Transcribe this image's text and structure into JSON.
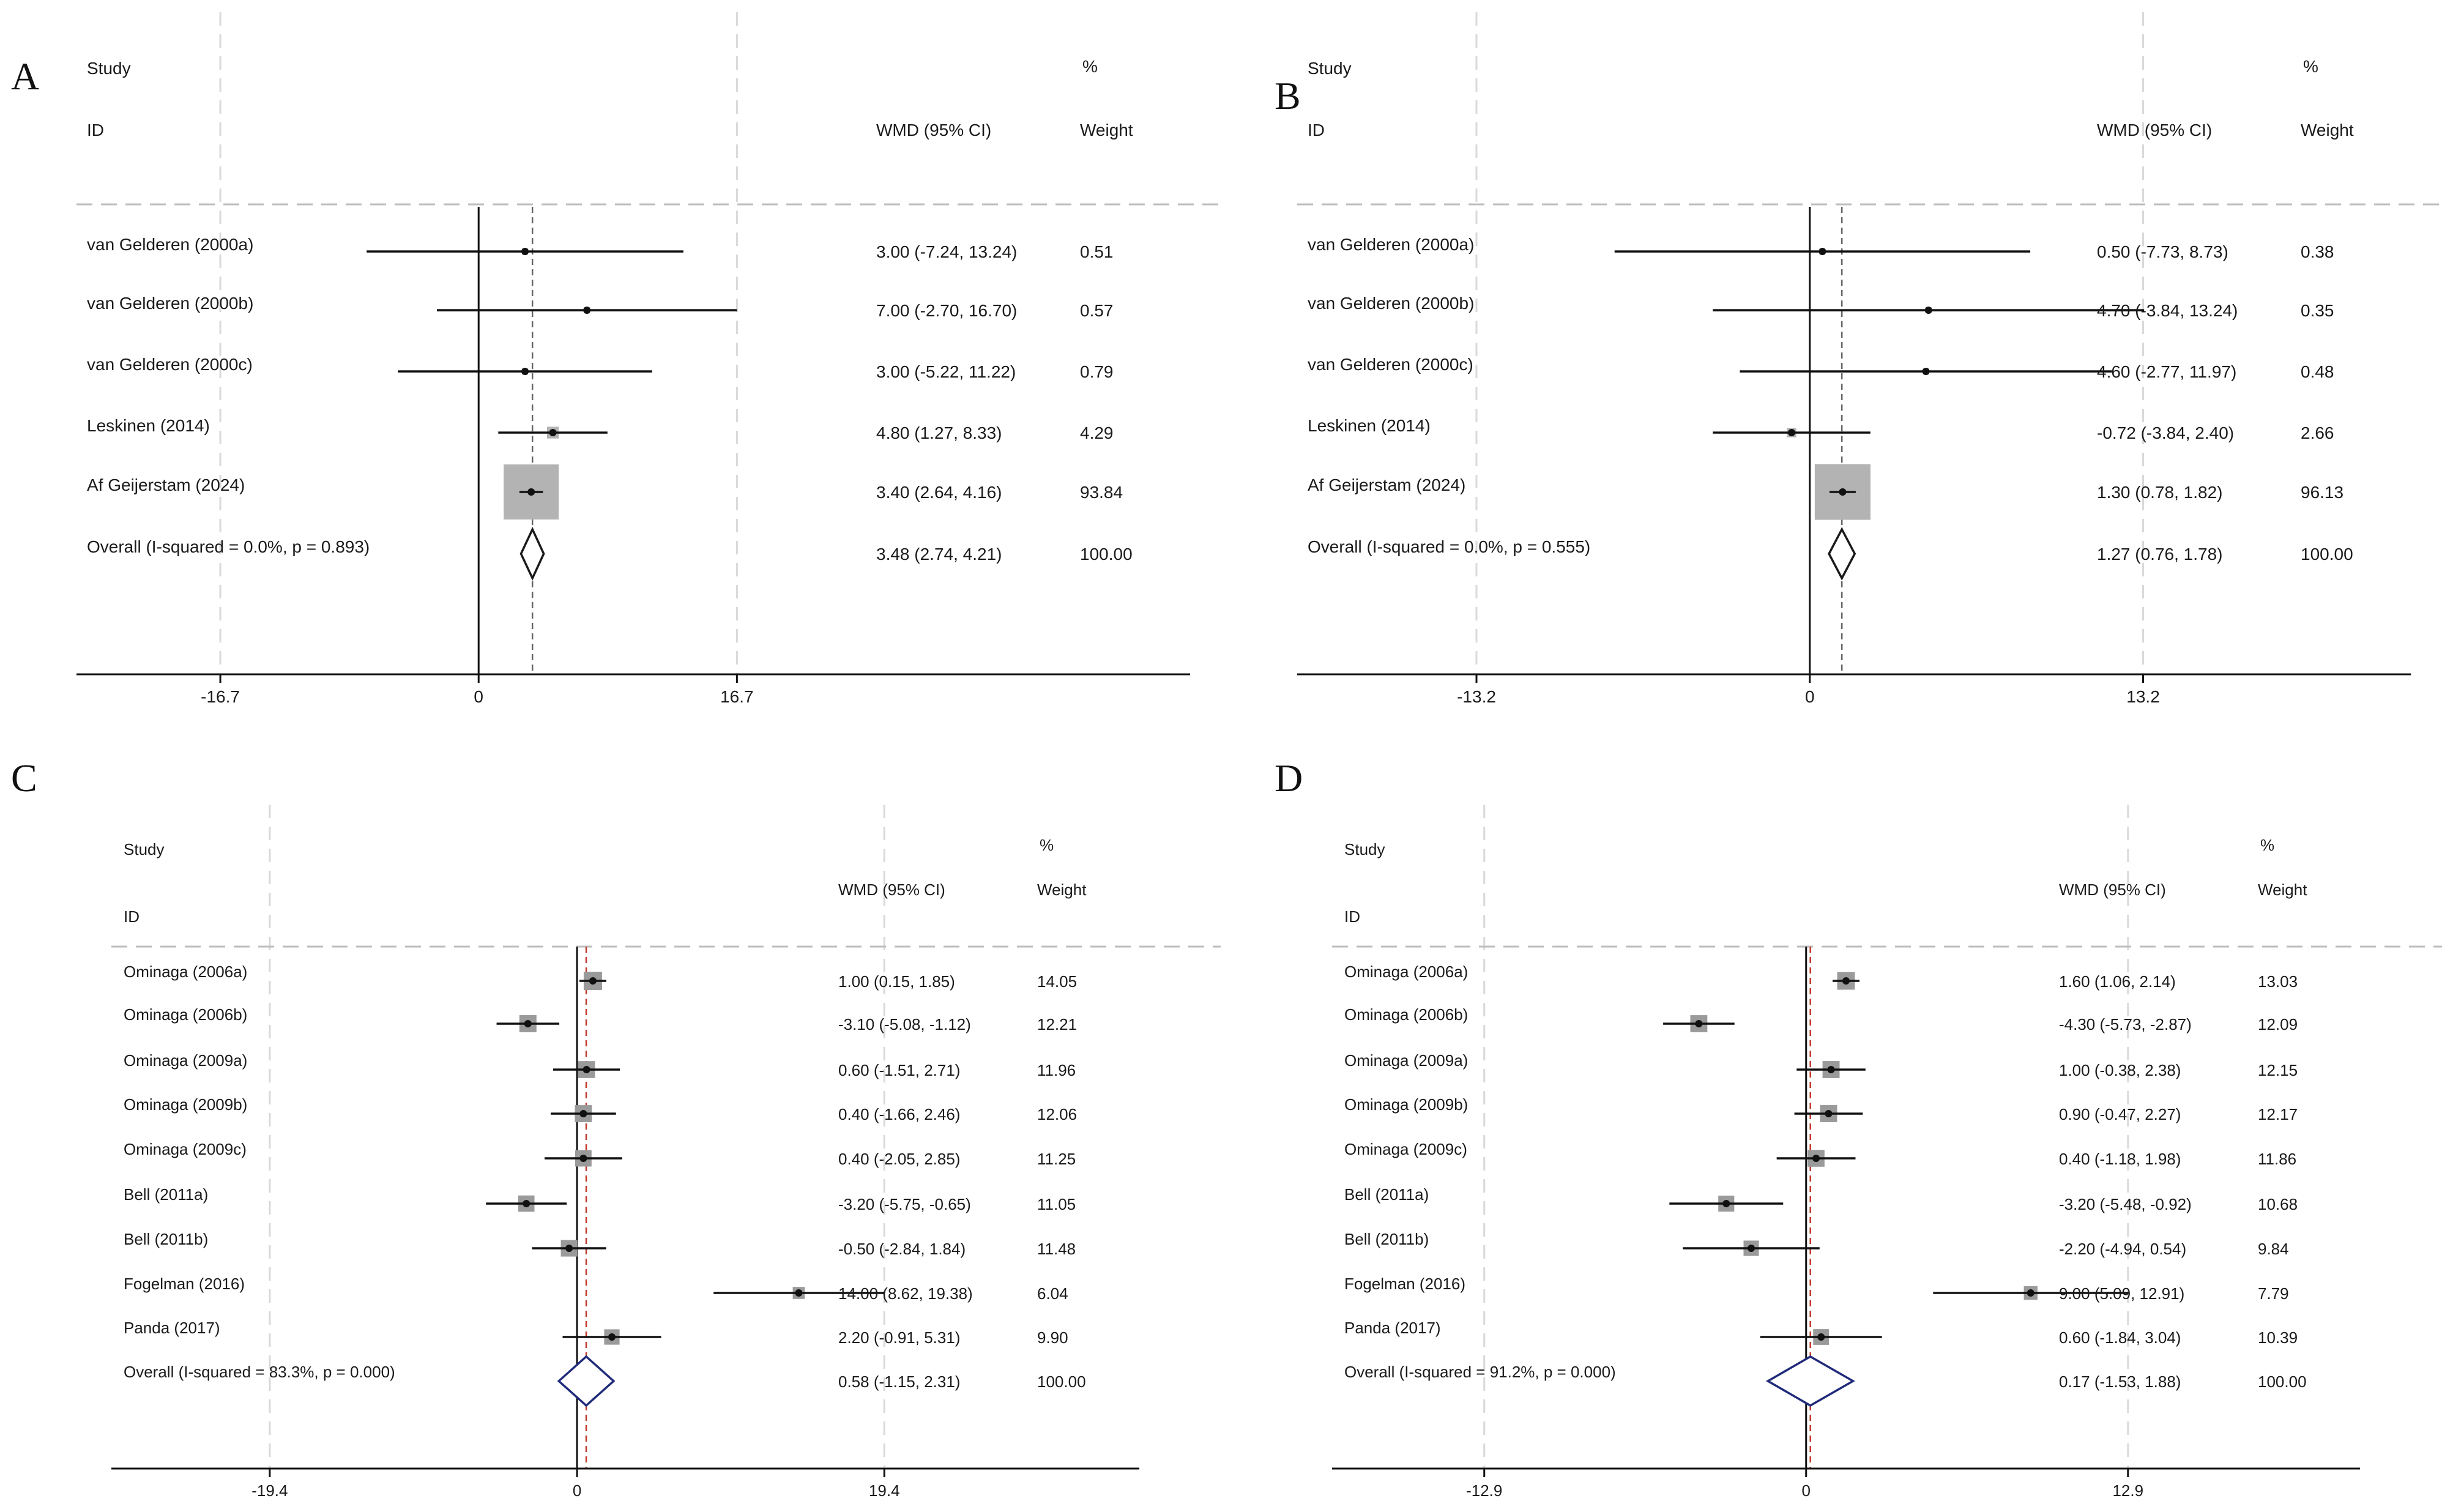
{
  "chart_data": [
    {
      "type": "forest",
      "panel_label": "A",
      "header": {
        "study": "Study",
        "id": "ID",
        "pct": "%",
        "effect": "WMD (95% CI)",
        "weight": "Weight"
      },
      "xlim": [
        -26,
        46
      ],
      "ticks": [
        {
          "value": -16.7,
          "label": "-16.7"
        },
        {
          "value": 0,
          "label": "0"
        },
        {
          "value": 16.7,
          "label": "16.7"
        }
      ],
      "style": "ab",
      "studies": [
        {
          "name": "van Gelderen (2000a)",
          "est": 3.0,
          "lo": -7.24,
          "hi": 13.24,
          "ci_text": "3.00 (-7.24, 13.24)",
          "weight": 0.51,
          "weight_text": "0.51"
        },
        {
          "name": "van Gelderen (2000b)",
          "est": 7.0,
          "lo": -2.7,
          "hi": 16.7,
          "ci_text": "7.00 (-2.70, 16.70)",
          "weight": 0.57,
          "weight_text": "0.57"
        },
        {
          "name": "van Gelderen (2000c)",
          "est": 3.0,
          "lo": -5.22,
          "hi": 11.22,
          "ci_text": "3.00 (-5.22, 11.22)",
          "weight": 0.79,
          "weight_text": "0.79"
        },
        {
          "name": "Leskinen (2014)",
          "est": 4.8,
          "lo": 1.27,
          "hi": 8.33,
          "ci_text": "4.80 (1.27, 8.33)",
          "weight": 4.29,
          "weight_text": "4.29"
        },
        {
          "name": "Af Geijerstam (2024)",
          "est": 3.4,
          "lo": 2.64,
          "hi": 4.16,
          "ci_text": "3.40 (2.64, 4.16)",
          "weight": 93.84,
          "weight_text": "93.84"
        }
      ],
      "overall": {
        "name": "Overall  (I-squared = 0.0%, p = 0.893)",
        "est": 3.48,
        "lo": 2.74,
        "hi": 4.21,
        "ci_text": "3.48 (2.74, 4.21)",
        "weight_text": "100.00"
      },
      "colors": {
        "diamond": "#1a1a1a",
        "ref_line": "#666666",
        "box": "#b3b3b3"
      }
    },
    {
      "type": "forest",
      "panel_label": "B",
      "header": {
        "study": "Study",
        "id": "ID",
        "pct": "%",
        "effect": "WMD (95% CI)",
        "weight": "Weight"
      },
      "xlim": [
        -20.3,
        23.8
      ],
      "ticks": [
        {
          "value": -13.2,
          "label": "-13.2"
        },
        {
          "value": 0,
          "label": "0"
        },
        {
          "value": 13.2,
          "label": "13.2"
        }
      ],
      "style": "ab",
      "studies": [
        {
          "name": "van Gelderen (2000a)",
          "est": 0.5,
          "lo": -7.73,
          "hi": 8.73,
          "ci_text": "0.50 (-7.73, 8.73)",
          "weight": 0.38,
          "weight_text": "0.38"
        },
        {
          "name": "van Gelderen (2000b)",
          "est": 4.7,
          "lo": -3.84,
          "hi": 13.24,
          "ci_text": "4.70 (-3.84, 13.24)",
          "weight": 0.35,
          "weight_text": "0.35"
        },
        {
          "name": "van Gelderen (2000c)",
          "est": 4.6,
          "lo": -2.77,
          "hi": 11.97,
          "ci_text": "4.60 (-2.77, 11.97)",
          "weight": 0.48,
          "weight_text": "0.48"
        },
        {
          "name": "Leskinen (2014)",
          "est": -0.72,
          "lo": -3.84,
          "hi": 2.4,
          "ci_text": "-0.72 (-3.84, 2.40)",
          "weight": 2.66,
          "weight_text": "2.66"
        },
        {
          "name": "Af Geijerstam (2024)",
          "est": 1.3,
          "lo": 0.78,
          "hi": 1.82,
          "ci_text": "1.30 (0.78, 1.82)",
          "weight": 96.13,
          "weight_text": "96.13"
        }
      ],
      "overall": {
        "name": "Overall  (I-squared = 0.0%, p = 0.555)",
        "est": 1.27,
        "lo": 0.76,
        "hi": 1.78,
        "ci_text": "1.27 (0.76, 1.78)",
        "weight_text": "100.00"
      },
      "colors": {
        "diamond": "#1a1a1a",
        "ref_line": "#666666",
        "box": "#b3b3b3"
      }
    },
    {
      "type": "forest",
      "panel_label": "C",
      "header": {
        "study": "Study",
        "id": "ID",
        "pct": "%",
        "effect": "WMD (95% CI)",
        "weight": "Weight"
      },
      "xlim": [
        -29.4,
        35.5
      ],
      "ticks": [
        {
          "value": -19.4,
          "label": "-19.4"
        },
        {
          "value": 0,
          "label": "0"
        },
        {
          "value": 19.4,
          "label": "19.4"
        }
      ],
      "style": "cd",
      "studies": [
        {
          "name": "Ominaga (2006a)",
          "est": 1.0,
          "lo": 0.15,
          "hi": 1.85,
          "ci_text": "1.00 (0.15, 1.85)",
          "weight": 14.05,
          "weight_text": "14.05"
        },
        {
          "name": "Ominaga (2006b)",
          "est": -3.1,
          "lo": -5.08,
          "hi": -1.12,
          "ci_text": "-3.10 (-5.08, -1.12)",
          "weight": 12.21,
          "weight_text": "12.21"
        },
        {
          "name": "Ominaga (2009a)",
          "est": 0.6,
          "lo": -1.51,
          "hi": 2.71,
          "ci_text": "0.60 (-1.51, 2.71)",
          "weight": 11.96,
          "weight_text": "11.96"
        },
        {
          "name": "Ominaga (2009b)",
          "est": 0.4,
          "lo": -1.66,
          "hi": 2.46,
          "ci_text": "0.40 (-1.66, 2.46)",
          "weight": 12.06,
          "weight_text": "12.06"
        },
        {
          "name": "Ominaga (2009c)",
          "est": 0.4,
          "lo": -2.05,
          "hi": 2.85,
          "ci_text": "0.40 (-2.05, 2.85)",
          "weight": 11.25,
          "weight_text": "11.25"
        },
        {
          "name": "Bell (2011a)",
          "est": -3.2,
          "lo": -5.75,
          "hi": -0.65,
          "ci_text": "-3.20 (-5.75, -0.65)",
          "weight": 11.05,
          "weight_text": "11.05"
        },
        {
          "name": "Bell (2011b)",
          "est": -0.5,
          "lo": -2.84,
          "hi": 1.84,
          "ci_text": "-0.50 (-2.84, 1.84)",
          "weight": 11.48,
          "weight_text": "11.48"
        },
        {
          "name": "Fogelman (2016)",
          "est": 14.0,
          "lo": 8.62,
          "hi": 19.38,
          "ci_text": "14.00 (8.62, 19.38)",
          "weight": 6.04,
          "weight_text": "6.04"
        },
        {
          "name": "Panda (2017)",
          "est": 2.2,
          "lo": -0.91,
          "hi": 5.31,
          "ci_text": "2.20 (-0.91, 5.31)",
          "weight": 9.9,
          "weight_text": "9.90"
        }
      ],
      "overall": {
        "name": "Overall  (I-squared = 83.3%, p = 0.000)",
        "est": 0.58,
        "lo": -1.15,
        "hi": 2.31,
        "ci_text": "0.58 (-1.15, 2.31)",
        "weight_text": "100.00"
      },
      "colors": {
        "diamond": "#1f2a7a",
        "ref_line": "#c0392b",
        "box": "#9a9a9a"
      }
    },
    {
      "type": "forest",
      "panel_label": "D",
      "header": {
        "study": "Study",
        "id": "ID",
        "pct": "%",
        "effect": "WMD (95% CI)",
        "weight": "Weight"
      },
      "xlim": [
        -19.0,
        22.2
      ],
      "ticks": [
        {
          "value": -12.9,
          "label": "-12.9"
        },
        {
          "value": 0,
          "label": "0"
        },
        {
          "value": 12.9,
          "label": "12.9"
        }
      ],
      "style": "cd",
      "studies": [
        {
          "name": "Ominaga (2006a)",
          "est": 1.6,
          "lo": 1.06,
          "hi": 2.14,
          "ci_text": "1.60 (1.06, 2.14)",
          "weight": 13.03,
          "weight_text": "13.03"
        },
        {
          "name": "Ominaga (2006b)",
          "est": -4.3,
          "lo": -5.73,
          "hi": -2.87,
          "ci_text": "-4.30 (-5.73, -2.87)",
          "weight": 12.09,
          "weight_text": "12.09"
        },
        {
          "name": "Ominaga (2009a)",
          "est": 1.0,
          "lo": -0.38,
          "hi": 2.38,
          "ci_text": "1.00 (-0.38, 2.38)",
          "weight": 12.15,
          "weight_text": "12.15"
        },
        {
          "name": "Ominaga (2009b)",
          "est": 0.9,
          "lo": -0.47,
          "hi": 2.27,
          "ci_text": "0.90 (-0.47, 2.27)",
          "weight": 12.17,
          "weight_text": "12.17"
        },
        {
          "name": "Ominaga (2009c)",
          "est": 0.4,
          "lo": -1.18,
          "hi": 1.98,
          "ci_text": "0.40 (-1.18, 1.98)",
          "weight": 11.86,
          "weight_text": "11.86"
        },
        {
          "name": "Bell (2011a)",
          "est": -3.2,
          "lo": -5.48,
          "hi": -0.92,
          "ci_text": "-3.20 (-5.48, -0.92)",
          "weight": 10.68,
          "weight_text": "10.68"
        },
        {
          "name": "Bell (2011b)",
          "est": -2.2,
          "lo": -4.94,
          "hi": 0.54,
          "ci_text": "-2.20 (-4.94, 0.54)",
          "weight": 9.84,
          "weight_text": "9.84"
        },
        {
          "name": "Fogelman (2016)",
          "est": 9.0,
          "lo": 5.09,
          "hi": 12.91,
          "ci_text": "9.00 (5.09, 12.91)",
          "weight": 7.79,
          "weight_text": "7.79"
        },
        {
          "name": "Panda (2017)",
          "est": 0.6,
          "lo": -1.84,
          "hi": 3.04,
          "ci_text": "0.60 (-1.84, 3.04)",
          "weight": 10.39,
          "weight_text": "10.39"
        }
      ],
      "overall": {
        "name": "Overall  (I-squared = 91.2%, p = 0.000)",
        "est": 0.17,
        "lo": -1.53,
        "hi": 1.88,
        "ci_text": "0.17 (-1.53, 1.88)",
        "weight_text": "100.00"
      },
      "colors": {
        "diamond": "#1f2a7a",
        "ref_line": "#c0392b",
        "box": "#9a9a9a"
      }
    }
  ]
}
